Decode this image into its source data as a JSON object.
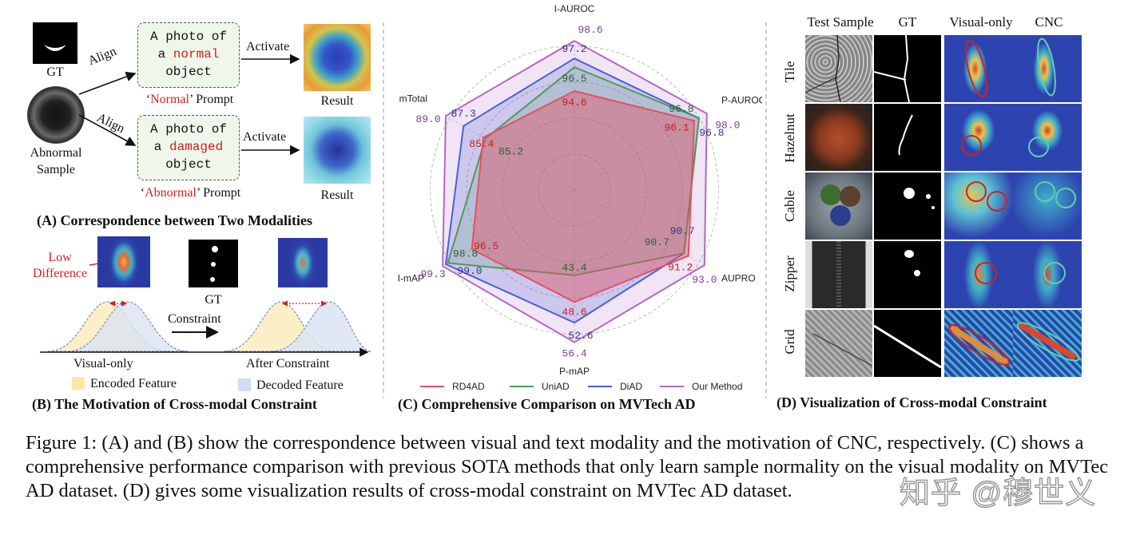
{
  "panel_a": {
    "gt_label": "GT",
    "sample_label_line1": "Abnormal",
    "sample_label_line2": "Sample",
    "align_top": "Align",
    "align_bottom": "Align",
    "prompt_normal": {
      "line1": "A photo of",
      "line2_prefix": "a ",
      "keyword": "normal",
      "line3": "object"
    },
    "prompt_damaged": {
      "line1": "A photo of",
      "line2_prefix": "a ",
      "keyword": "damaged",
      "line3": "object"
    },
    "normal_prompt_caption_q1": "‘",
    "normal_prompt_caption_kw": "Normal",
    "normal_prompt_caption_rest": "’ Prompt",
    "abnormal_prompt_caption_q1": "‘",
    "abnormal_prompt_caption_kw": "Abnormal",
    "abnormal_prompt_caption_rest": "’ Prompt",
    "activate_top": "Activate",
    "activate_bottom": "Activate",
    "result_top": "Result",
    "result_bottom": "Result",
    "title": "(A) Correspondence between Two Modalities"
  },
  "panel_b": {
    "low_difference_line1": "Low",
    "low_difference_line2": "Difference",
    "gt_label": "GT",
    "constraint_label": "Constraint",
    "visual_only": "Visual-only",
    "after_constraint": "After Constraint",
    "legend_encoded": "Encoded Feature",
    "legend_decoded": "Decoded Feature",
    "title": "(B) The Motivation of Cross-modal Constraint"
  },
  "chart_data": {
    "type": "radar",
    "title": "(C) Comprehensive Comparison on MVTech AD",
    "axes": [
      "I-AUROC",
      "P-AUROC",
      "AUPRO",
      "P-mAP",
      "I-mAP",
      "mTotal"
    ],
    "series": [
      {
        "name": "RD4AD",
        "color": "#e05263",
        "values": [
          94.6,
          96.1,
          91.2,
          48.6,
          96.5,
          85.4
        ],
        "labels": [
          "94.6",
          "96.1",
          "91.2",
          "48.6",
          "96.5",
          "85.4"
        ]
      },
      {
        "name": "UniAD",
        "color": "#4e9a5c",
        "values": [
          96.5,
          96.8,
          90.7,
          43.4,
          98.8,
          85.2
        ],
        "labels": [
          "96.5",
          "96.8",
          "90.7",
          "43.4",
          "98.8",
          "85.2"
        ]
      },
      {
        "name": "DiAD",
        "color": "#4a5fd6",
        "values": [
          97.2,
          96.8,
          90.7,
          52.6,
          99.0,
          87.3
        ],
        "labels": [
          "97.2",
          "96.8",
          "90.7",
          "52.6",
          "99.0",
          "87.3"
        ]
      },
      {
        "name": "Our Method",
        "color": "#b26ac0",
        "values": [
          98.6,
          98.0,
          93.0,
          56.4,
          99.3,
          89.0
        ],
        "labels": [
          "98.6",
          "98.0",
          "93.0",
          "56.4",
          "99.3",
          "89.0"
        ]
      }
    ],
    "legend": [
      "RD4AD",
      "UniAD",
      "DiAD",
      "Our Method"
    ],
    "legend_position": "bottom"
  },
  "panel_d": {
    "col_labels": [
      "Test Sample",
      "GT",
      "Visual-only",
      "CNC"
    ],
    "row_labels": [
      "Tile",
      "Hazelnut",
      "Cable",
      "Zipper",
      "Grid"
    ],
    "title": "(D) Visualization of Cross-modal Constraint"
  },
  "caption": {
    "text": "Figure 1: (A) and (B) show the correspondence between visual and text modality and the motivation of CNC, respectively. (C) shows a comprehensive performance comparison with previous SOTA methods that only learn sample normality on the visual modality on MVTec AD dataset. (D) gives some visualization results of cross-modal constraint on MVTec AD dataset."
  },
  "watermark": "知乎 @穆世义",
  "colors": {
    "red_text": "#d22020",
    "encoded_fill": "#fbefc8",
    "decoded_fill": "#dbe4f3"
  }
}
